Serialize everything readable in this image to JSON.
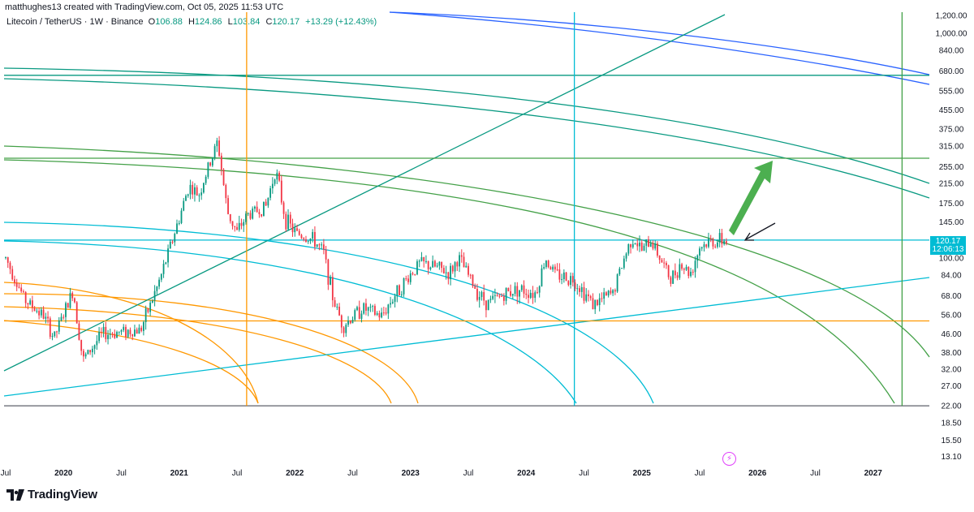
{
  "header": {
    "credit": "matthughes13 created with TradingView.com, Oct 05, 2025 11:53 UTC"
  },
  "symbol": {
    "name": "Litecoin / TetherUS · 1W · Binance",
    "open_label": "O",
    "open": "106.88",
    "high_label": "H",
    "high": "124.86",
    "low_label": "L",
    "low": "103.84",
    "close_label": "C",
    "close": "120.17",
    "change": "+13.29 (+12.43%)"
  },
  "price_tag": {
    "price": "120.17",
    "countdown": "12:06:13"
  },
  "brand": {
    "name": "TradingView"
  },
  "icons": {
    "logo": "tradingview-logo-icon",
    "lightning": "lightning-icon"
  },
  "colors": {
    "bull": "#089981",
    "bear": "#f23645",
    "orange": "#ff9800",
    "cyan": "#00bcd4",
    "teal": "#089981",
    "green": "#43a047",
    "blue": "#2962ff",
    "arrow": "#4caf50"
  },
  "chart_data": {
    "type": "candlestick",
    "symbol": "Litecoin / TetherUS",
    "interval": "1W",
    "exchange": "Binance",
    "y_scale": "log",
    "y_ticks": [
      "1,200.00",
      "1,000.00",
      "840.00",
      "680.00",
      "555.00",
      "455.00",
      "375.00",
      "315.00",
      "255.00",
      "215.00",
      "175.00",
      "145.00",
      "120.00",
      "100.00",
      "84.00",
      "68.00",
      "56.00",
      "46.00",
      "38.00",
      "32.00",
      "27.00",
      "22.00",
      "18.50",
      "15.50",
      "13.10"
    ],
    "y_tick_values": [
      1200,
      1000,
      840,
      680,
      555,
      455,
      375,
      315,
      255,
      215,
      175,
      145,
      120,
      100,
      84,
      68,
      56,
      46,
      38,
      32,
      27,
      22,
      18.5,
      15.5,
      13.1
    ],
    "x_ticks": [
      "Jul",
      "2020",
      "Jul",
      "2021",
      "Jul",
      "2022",
      "Jul",
      "2023",
      "Jul",
      "2024",
      "Jul",
      "2025",
      "Jul",
      "2026",
      "Jul",
      "2027"
    ],
    "x_tick_dates": [
      "2019-07",
      "2020-01",
      "2020-07",
      "2021-01",
      "2021-07",
      "2022-01",
      "2022-07",
      "2023-01",
      "2023-07",
      "2024-01",
      "2024-07",
      "2025-01",
      "2025-07",
      "2026-01",
      "2026-07",
      "2027-01"
    ],
    "current_price": 120.17,
    "horizontal_levels": [
      {
        "price": 650,
        "color": "teal"
      },
      {
        "price": 278,
        "color": "green"
      },
      {
        "price": 120.17,
        "color": "cyan"
      },
      {
        "price": 52.5,
        "color": "orange"
      },
      {
        "price": 22,
        "color": "gray"
      }
    ],
    "vertical_lines": [
      {
        "date": "2021-08",
        "color": "orange"
      },
      {
        "date": "2024-06",
        "color": "cyan"
      },
      {
        "date": "2027-04",
        "color": "green"
      }
    ],
    "weekly_path": [
      [
        "2019-07",
        100
      ],
      [
        "2019-09",
        65
      ],
      [
        "2019-11",
        55
      ],
      [
        "2019-12",
        44
      ],
      [
        "2020-02",
        72
      ],
      [
        "2020-03",
        35
      ],
      [
        "2020-05",
        46
      ],
      [
        "2020-07",
        47
      ],
      [
        "2020-09",
        48
      ],
      [
        "2020-11",
        80
      ],
      [
        "2020-12",
        110
      ],
      [
        "2021-01",
        150
      ],
      [
        "2021-02",
        210
      ],
      [
        "2021-03",
        190
      ],
      [
        "2021-05",
        330
      ],
      [
        "2021-06",
        160
      ],
      [
        "2021-07",
        130
      ],
      [
        "2021-08",
        155
      ],
      [
        "2021-10",
        170
      ],
      [
        "2021-11",
        250
      ],
      [
        "2021-12",
        150
      ],
      [
        "2022-01",
        130
      ],
      [
        "2022-03",
        120
      ],
      [
        "2022-04",
        105
      ],
      [
        "2022-05",
        65
      ],
      [
        "2022-06",
        50
      ],
      [
        "2022-08",
        60
      ],
      [
        "2022-10",
        55
      ],
      [
        "2022-11",
        65
      ],
      [
        "2023-01",
        85
      ],
      [
        "2023-02",
        95
      ],
      [
        "2023-04",
        90
      ],
      [
        "2023-05",
        85
      ],
      [
        "2023-06",
        100
      ],
      [
        "2023-08",
        70
      ],
      [
        "2023-09",
        63
      ],
      [
        "2023-11",
        70
      ],
      [
        "2023-12",
        73
      ],
      [
        "2024-02",
        70
      ],
      [
        "2024-03",
        100
      ],
      [
        "2024-04",
        85
      ],
      [
        "2024-06",
        80
      ],
      [
        "2024-08",
        62
      ],
      [
        "2024-10",
        70
      ],
      [
        "2024-11",
        95
      ],
      [
        "2024-12",
        125
      ],
      [
        "2025-01",
        108
      ],
      [
        "2025-02",
        120
      ],
      [
        "2025-04",
        80
      ],
      [
        "2025-05",
        95
      ],
      [
        "2025-06",
        85
      ],
      [
        "2025-07",
        112
      ],
      [
        "2025-08",
        118
      ],
      [
        "2025-10",
        120.17
      ]
    ]
  }
}
